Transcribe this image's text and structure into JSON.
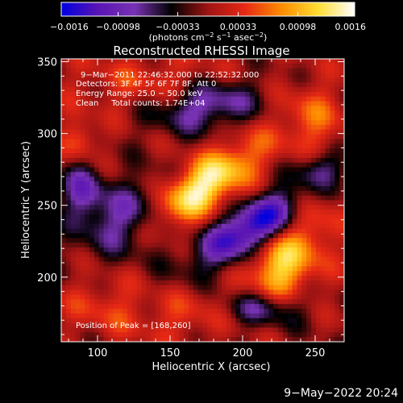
{
  "chart_data": {
    "type": "heatmap",
    "title": "Reconstructed RHESSI Image",
    "xlabel": "Heliocentric X (arcsec)",
    "ylabel": "Heliocentric Y (arcsec)",
    "xlim": [
      75,
      270
    ],
    "ylim": [
      155,
      352
    ],
    "xticks": [
      100,
      150,
      200,
      250
    ],
    "yticks": [
      200,
      250,
      300,
      350
    ],
    "grid": false,
    "colorbar": {
      "min": -0.0016,
      "max": 0.0016,
      "tick_values": [
        -0.0016,
        -0.00098,
        -0.00033,
        0.00033,
        0.00098,
        0.0016
      ],
      "tick_labels": [
        "−0.0016",
        "−0.00098",
        "−0.00033",
        "0.00033",
        "0.00098",
        "0.0016"
      ],
      "unit_parts": [
        "(photons cm",
        "−2",
        " s",
        "−1",
        " asec",
        "−2",
        ")"
      ],
      "colors": [
        "#0000e0",
        "#5a14b4",
        "#7832b4",
        "#000000",
        "#a01414",
        "#e62814",
        "#ff8c00",
        "#ffdc32",
        "#ffffff"
      ]
    },
    "annotations": [
      "9−Mar−2011 22:46:32.000 to 22:52:32.000",
      "Detectors: 3F 4F 5F 6F 7F 8F, Att 0",
      "Energy Range: 25.0 − 50.0 keV",
      "Clean     Total counts: 1.74E+04"
    ],
    "peak_label": "Position of Peak = [168,260]",
    "sources": [
      {
        "x": 168,
        "y": 260,
        "sx": 34,
        "sy": 12,
        "angle": 35,
        "amp": 0.0016
      },
      {
        "x": 225,
        "y": 208,
        "sx": 14,
        "sy": 16,
        "angle": 0,
        "amp": 0.00115
      },
      {
        "x": 247,
        "y": 238,
        "sx": 13,
        "sy": 24,
        "angle": 0,
        "amp": 0.0006
      },
      {
        "x": 248,
        "y": 310,
        "sx": 16,
        "sy": 18,
        "angle": 0,
        "amp": 0.00055
      },
      {
        "x": 88,
        "y": 295,
        "sx": 8,
        "sy": 10,
        "angle": 0,
        "amp": 0.0006
      },
      {
        "x": 105,
        "y": 180,
        "sx": 20,
        "sy": 14,
        "angle": 0,
        "amp": 0.0004
      },
      {
        "x": 170,
        "y": 175,
        "sx": 28,
        "sy": 12,
        "angle": 10,
        "amp": 0.00045
      },
      {
        "x": 140,
        "y": 335,
        "sx": 40,
        "sy": 14,
        "angle": 0,
        "amp": 0.0004
      },
      {
        "x": 207,
        "y": 235,
        "sx": 30,
        "sy": 11,
        "angle": 32,
        "amp": -0.0016
      },
      {
        "x": 125,
        "y": 240,
        "sx": 24,
        "sy": 16,
        "angle": 30,
        "amp": -0.0011
      },
      {
        "x": 175,
        "y": 320,
        "sx": 26,
        "sy": 12,
        "angle": 10,
        "amp": -0.001
      },
      {
        "x": 210,
        "y": 178,
        "sx": 22,
        "sy": 9,
        "angle": 0,
        "amp": -0.0008
      },
      {
        "x": 252,
        "y": 275,
        "sx": 12,
        "sy": 9,
        "angle": 0,
        "amp": -0.0008
      },
      {
        "x": 90,
        "y": 260,
        "sx": 10,
        "sy": 14,
        "angle": 0,
        "amp": -0.0009
      }
    ]
  },
  "footer": {
    "timestamp": "9−May−2022 20:24"
  }
}
